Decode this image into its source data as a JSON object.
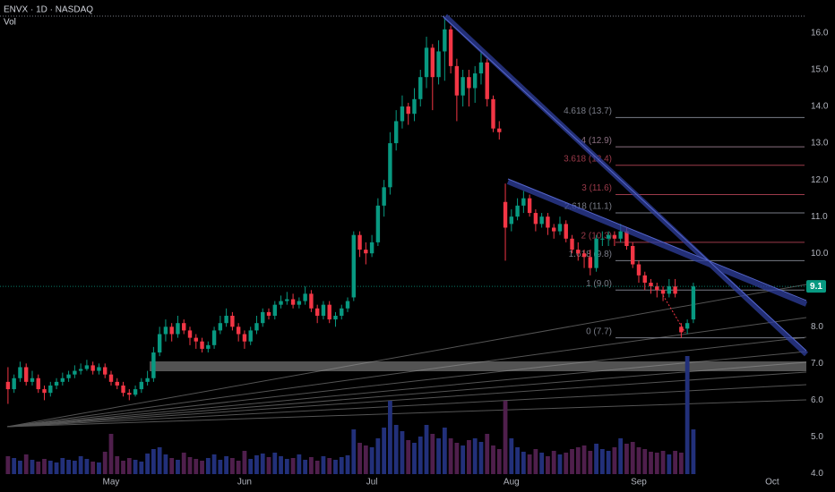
{
  "chart_data": {
    "type": "candlestick",
    "title": "ENVX · 1D · NASDAQ",
    "volume_label": "Vol",
    "categories": [
      null,
      null,
      null,
      null,
      null,
      null,
      null,
      null,
      null,
      null,
      null,
      null,
      null,
      null,
      null,
      null,
      null,
      "May",
      null,
      null,
      null,
      null,
      null,
      null,
      null,
      null,
      null,
      null,
      null,
      null,
      null,
      null,
      null,
      null,
      null,
      null,
      null,
      null,
      null,
      "Jun",
      null,
      null,
      null,
      null,
      null,
      null,
      null,
      null,
      null,
      null,
      null,
      null,
      null,
      null,
      null,
      null,
      null,
      null,
      null,
      null,
      "Jul",
      null,
      null,
      null,
      null,
      null,
      null,
      null,
      null,
      null,
      null,
      null,
      null,
      null,
      null,
      null,
      null,
      null,
      null,
      null,
      null,
      null,
      null,
      "Aug",
      null,
      null,
      null,
      null,
      null,
      null,
      null,
      null,
      null,
      null,
      null,
      null,
      null,
      null,
      null,
      null,
      null,
      null,
      null,
      null,
      "Sep",
      null,
      null,
      null,
      null,
      null,
      null,
      null,
      null,
      null,
      null,
      null,
      null,
      null,
      null,
      null,
      null,
      null,
      null,
      null,
      null,
      null,
      "Oct"
    ],
    "open": [
      6.5,
      6.3,
      6.6,
      6.9,
      6.5,
      6.6,
      6.3,
      6.2,
      6.4,
      6.5,
      6.6,
      6.7,
      6.8,
      6.85,
      6.95,
      6.8,
      6.9,
      6.7,
      6.5,
      6.4,
      6.2,
      6.15,
      6.3,
      6.5,
      6.6,
      7.3,
      7.8,
      8.0,
      7.8,
      8.1,
      7.9,
      7.7,
      7.6,
      7.4,
      7.5,
      7.9,
      8.1,
      8.3,
      8.0,
      7.8,
      7.6,
      7.9,
      8.1,
      8.4,
      8.3,
      8.6,
      8.7,
      8.75,
      8.6,
      8.7,
      8.9,
      8.5,
      8.3,
      8.6,
      8.2,
      8.3,
      8.5,
      8.8,
      10.5,
      10.1,
      10.0,
      10.3,
      11.3,
      11.8,
      13.0,
      13.6,
      14.0,
      13.8,
      14.2,
      14.8,
      15.6,
      14.8,
      15.5,
      16.1,
      15.1,
      14.3,
      14.8,
      14.5,
      14.9,
      15.2,
      14.2,
      13.4,
      11.4,
      10.8,
      11.0,
      11.3,
      11.5,
      11.1,
      10.8,
      11.0,
      10.7,
      10.6,
      10.8,
      10.4,
      10.1,
      10.0,
      9.9,
      9.6,
      10.4,
      10.4,
      10.5,
      10.4,
      10.6,
      10.2,
      9.7,
      9.4,
      9.2,
      9.1,
      9.0,
      8.9,
      9.1,
      8.0,
      7.95,
      8.2,
      null,
      null,
      null,
      null,
      null,
      null,
      null,
      null,
      null,
      null,
      null,
      null,
      null
    ],
    "high": [
      6.9,
      6.7,
      7.05,
      7.0,
      6.8,
      6.7,
      6.4,
      6.5,
      6.6,
      6.75,
      6.8,
      6.95,
      7.0,
      7.1,
      7.05,
      7.0,
      7.0,
      6.8,
      6.6,
      6.5,
      6.3,
      6.4,
      6.6,
      6.8,
      7.45,
      8.0,
      8.2,
      8.1,
      8.3,
      8.2,
      8.0,
      7.8,
      7.7,
      7.6,
      8.0,
      8.3,
      8.5,
      8.4,
      8.1,
      7.9,
      8.0,
      8.3,
      8.5,
      8.5,
      8.7,
      8.85,
      8.95,
      8.9,
      8.8,
      9.1,
      9.0,
      8.6,
      8.7,
      8.7,
      8.4,
      8.6,
      8.8,
      10.6,
      10.6,
      10.3,
      10.5,
      11.5,
      12.0,
      13.3,
      13.9,
      14.3,
      14.1,
      14.5,
      15.0,
      15.9,
      15.7,
      15.8,
      16.4,
      16.2,
      15.3,
      15.0,
      15.0,
      15.1,
      15.5,
      15.3,
      14.3,
      13.6,
      11.9,
      11.2,
      11.5,
      11.7,
      11.6,
      11.2,
      11.1,
      11.1,
      10.8,
      11.0,
      10.9,
      10.5,
      10.3,
      10.1,
      10.1,
      10.5,
      10.6,
      10.6,
      10.6,
      10.8,
      10.7,
      10.3,
      9.8,
      9.5,
      9.3,
      9.2,
      9.1,
      9.3,
      9.3,
      8.1,
      8.2,
      9.2,
      null,
      null,
      null,
      null,
      null,
      null,
      null,
      null,
      null,
      null,
      null,
      null,
      null
    ],
    "low": [
      5.9,
      6.2,
      6.5,
      6.4,
      6.4,
      6.2,
      6.0,
      6.1,
      6.3,
      6.4,
      6.5,
      6.6,
      6.7,
      6.8,
      6.7,
      6.7,
      6.6,
      6.4,
      6.3,
      6.1,
      6.0,
      6.1,
      6.2,
      6.4,
      6.5,
      7.2,
      7.6,
      7.6,
      7.7,
      7.8,
      7.5,
      7.4,
      7.3,
      7.3,
      7.4,
      7.8,
      8.0,
      7.9,
      7.6,
      7.4,
      7.5,
      7.8,
      8.0,
      8.2,
      8.2,
      8.5,
      8.6,
      8.5,
      8.5,
      8.6,
      8.4,
      8.1,
      8.2,
      8.1,
      8.0,
      8.2,
      8.4,
      8.7,
      9.9,
      9.7,
      9.9,
      10.2,
      11.0,
      11.6,
      12.8,
      13.4,
      13.5,
      13.6,
      14.0,
      14.5,
      13.9,
      14.6,
      14.7,
      14.9,
      13.6,
      14.0,
      14.0,
      14.1,
      14.6,
      14.0,
      13.3,
      13.1,
      9.8,
      10.6,
      10.9,
      11.1,
      11.0,
      10.6,
      10.7,
      10.5,
      10.4,
      10.5,
      10.3,
      10.0,
      9.8,
      9.6,
      9.4,
      9.5,
      10.2,
      10.2,
      10.2,
      10.3,
      10.1,
      9.6,
      9.2,
      9.0,
      8.9,
      8.8,
      8.7,
      8.8,
      8.8,
      7.7,
      7.8,
      8.1,
      null,
      null,
      null,
      null,
      null,
      null,
      null,
      null,
      null,
      null,
      null,
      null,
      null
    ],
    "close": [
      6.3,
      6.6,
      6.9,
      6.5,
      6.6,
      6.3,
      6.2,
      6.4,
      6.5,
      6.6,
      6.7,
      6.8,
      6.85,
      6.95,
      6.8,
      6.9,
      6.7,
      6.5,
      6.4,
      6.2,
      6.15,
      6.3,
      6.5,
      6.6,
      7.3,
      7.8,
      8.0,
      7.8,
      8.1,
      7.9,
      7.7,
      7.6,
      7.4,
      7.5,
      7.9,
      8.1,
      8.3,
      8.0,
      7.8,
      7.6,
      7.9,
      8.1,
      8.4,
      8.3,
      8.6,
      8.7,
      8.75,
      8.6,
      8.7,
      8.9,
      8.5,
      8.3,
      8.6,
      8.2,
      8.3,
      8.5,
      8.7,
      10.5,
      10.1,
      10.0,
      10.3,
      11.3,
      11.8,
      13.0,
      13.6,
      14.0,
      13.8,
      14.2,
      14.8,
      15.6,
      14.8,
      15.5,
      16.1,
      15.1,
      14.3,
      14.8,
      14.5,
      14.9,
      15.2,
      14.2,
      13.4,
      13.3,
      10.7,
      11.0,
      11.3,
      11.5,
      11.1,
      10.8,
      11.0,
      10.7,
      10.6,
      10.8,
      10.4,
      10.1,
      10.0,
      9.9,
      9.6,
      10.4,
      10.4,
      10.5,
      10.4,
      10.6,
      10.2,
      9.7,
      9.4,
      9.2,
      9.1,
      9.0,
      8.9,
      9.1,
      8.9,
      7.85,
      8.1,
      9.1,
      null,
      null,
      null,
      null,
      null,
      null,
      null,
      null,
      null,
      null,
      null,
      null,
      null
    ],
    "volume": [
      2.0,
      1.8,
      1.5,
      2.2,
      1.6,
      1.4,
      1.7,
      1.5,
      1.3,
      1.8,
      1.6,
      1.5,
      2.0,
      1.7,
      1.4,
      1.3,
      2.5,
      4.5,
      2.0,
      1.5,
      1.8,
      1.6,
      1.4,
      2.3,
      2.8,
      3.0,
      2.2,
      1.8,
      1.6,
      2.4,
      1.9,
      1.7,
      1.5,
      1.8,
      2.2,
      1.6,
      2.0,
      1.8,
      1.5,
      2.6,
      1.7,
      2.1,
      2.3,
      1.9,
      2.4,
      2.0,
      1.7,
      1.8,
      2.2,
      1.6,
      1.9,
      1.5,
      2.0,
      1.8,
      1.6,
      1.9,
      2.1,
      5.0,
      3.5,
      3.2,
      3.0,
      4.0,
      5.2,
      8.2,
      5.5,
      4.8,
      3.8,
      3.5,
      4.2,
      5.5,
      4.5,
      4.0,
      5.2,
      4.0,
      3.5,
      3.2,
      3.8,
      4.0,
      3.6,
      4.5,
      3.2,
      2.8,
      8.2,
      4.0,
      3.0,
      2.5,
      2.2,
      2.8,
      2.4,
      2.0,
      2.6,
      2.2,
      2.4,
      2.8,
      3.0,
      3.2,
      2.6,
      3.4,
      2.8,
      2.6,
      3.0,
      4.0,
      3.4,
      3.6,
      3.0,
      2.8,
      2.5,
      2.4,
      2.6,
      2.2,
      2.6,
      2.4,
      13.2,
      5.0,
      null,
      null,
      null,
      null,
      null,
      null,
      null,
      null,
      null,
      null,
      null,
      null,
      null
    ],
    "up_color": "#089981",
    "down_color": "#f23645",
    "volume_up_color": "#22307a",
    "volume_down_color": "#4f1f4c",
    "ylim": [
      3.5,
      16.9
    ],
    "yticks": [
      {
        "value": 4,
        "label": "4.0"
      },
      {
        "value": 5,
        "label": "5.0"
      },
      {
        "value": 6,
        "label": "6.0"
      },
      {
        "value": 7,
        "label": "7.0"
      },
      {
        "value": 8,
        "label": "8.0"
      },
      {
        "value": 9,
        "label": "9.0"
      },
      {
        "value": 10,
        "label": "10.0"
      },
      {
        "value": 11,
        "label": "11.0"
      },
      {
        "value": 12,
        "label": "12.0"
      },
      {
        "value": 13,
        "label": "13.0"
      },
      {
        "value": 14,
        "label": "14.0"
      },
      {
        "value": 15,
        "label": "15.0"
      },
      {
        "value": 16,
        "label": "16.0"
      }
    ],
    "last_price": 9.1,
    "fib_levels": [
      {
        "label": "4.618 (13.7)",
        "value": 13.7,
        "color": "#787b86"
      },
      {
        "label": "4 (12.9)",
        "value": 12.9,
        "color": "#8a6f80"
      },
      {
        "label": "3.618 (12.4)",
        "value": 12.4,
        "color": "#9b3a4a"
      },
      {
        "label": "3 (11.6)",
        "value": 11.6,
        "color": "#9b3a4a"
      },
      {
        "label": "2.618 (11.1)",
        "value": 11.1,
        "color": "#787b86"
      },
      {
        "label": "2 (10.3)",
        "value": 10.3,
        "color": "#9b3a4a"
      },
      {
        "label": "1.618 (9.8)",
        "value": 9.8,
        "color": "#787b86"
      },
      {
        "label": "1 (9.0)",
        "value": 9.0,
        "color": "#787b86"
      },
      {
        "label": "0 (7.7)",
        "value": 7.7,
        "color": "#787b86"
      }
    ]
  }
}
